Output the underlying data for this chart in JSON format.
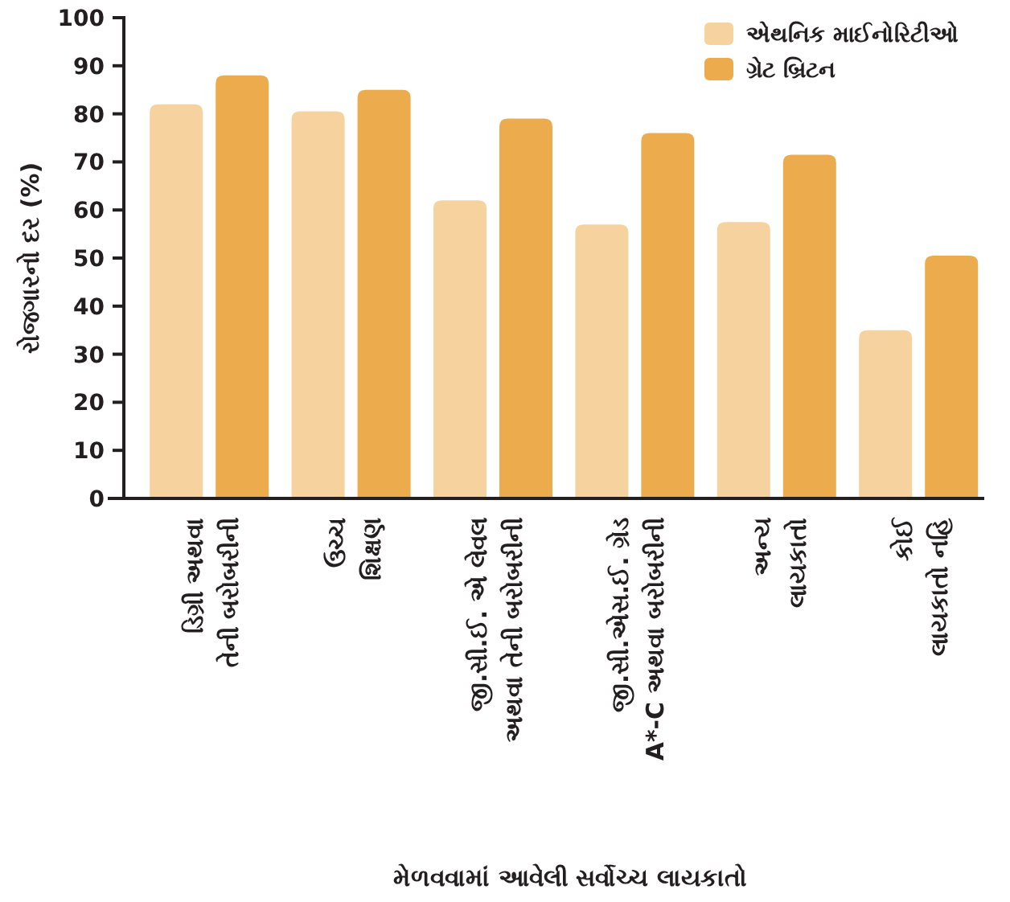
{
  "chart_data": {
    "type": "bar",
    "xlabel": "મેળવવામાં આવેલી સર્વોચ્ચ લાયકાતો",
    "ylabel": "રોજગારનો દર (%)",
    "categories": [
      "ડિગ્રી અથવા\nતેની બરોબરીની",
      "ઉચ્ચ\nશિક્ષણ",
      "જી.સી.ઈ. એ લેવલ\nઅથવા તેની બરોબરીની",
      "જી.સી.એસ.ઈ. ગ્રેડ\nA*-C અથવા બરોબરીની",
      "અન્ય\nલાયકાતો",
      "કોઈ\nલાયકાતો નહિ"
    ],
    "series": [
      {
        "name": "એથનિક માઈનોરિટીઓ",
        "color": "#f6d29f",
        "values": [
          82,
          80.5,
          62,
          57,
          57.5,
          35
        ]
      },
      {
        "name": "ગ્રેટ બ્રિટન",
        "color": "#ecac4d",
        "values": [
          88,
          85,
          79,
          76,
          71.5,
          50.5
        ]
      }
    ],
    "ylim": [
      0,
      100
    ],
    "yticks": [
      0,
      10,
      20,
      30,
      40,
      50,
      60,
      70,
      80,
      90,
      100
    ],
    "grid": false,
    "legend": "top right"
  }
}
